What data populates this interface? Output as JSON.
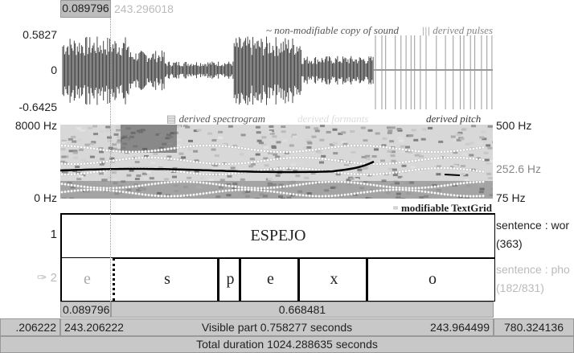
{
  "selection": {
    "start": "0.089796",
    "end_faded": "243.296018"
  },
  "sound": {
    "caption": "~ non-modifiable copy of sound",
    "pulses_caption": "||| derived pulses",
    "max_label": "0.5827",
    "zero_label": "0",
    "min_label": "-0.6425"
  },
  "spectrogram": {
    "caption": "derived spectrogram",
    "formants_caption": "derived formants",
    "pitch_caption": "derived pitch",
    "top_label": "8000 Hz",
    "bottom_label": "0 Hz",
    "pitch_top": "500 Hz",
    "pitch_mid": "252.6 Hz",
    "pitch_bottom": "75 Hz"
  },
  "textgrid": {
    "caption": "modifiable TextGrid",
    "tiers": [
      {
        "number": "1",
        "name": "sentence : wor",
        "count": "(363)",
        "intervals": [
          "ESPEJO"
        ]
      },
      {
        "number": "2",
        "name": "sentence : pho",
        "count": "(182/831)",
        "intervals": [
          "e",
          "s",
          "p",
          "e",
          "x",
          "o"
        ]
      }
    ]
  },
  "footer": {
    "sel_start": "0.089796",
    "sel_duration": "0.668481",
    "left_outside": ".206222",
    "window_start": "243.206222",
    "visible": "Visible part 0.758277 seconds",
    "window_end": "243.964499",
    "right_outside": "780.324136",
    "total": "Total duration 1024.288635 seconds"
  }
}
